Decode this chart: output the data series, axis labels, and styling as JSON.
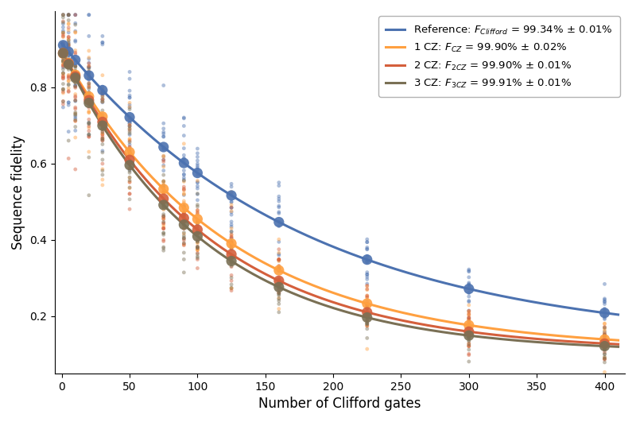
{
  "xlabel": "Number of Clifford gates",
  "ylabel": "Sequence fidelity",
  "xlim": [
    -5,
    415
  ],
  "ylim": [
    0.05,
    1.0
  ],
  "x_points": [
    1,
    5,
    10,
    20,
    30,
    50,
    75,
    90,
    100,
    125,
    160,
    225,
    300,
    400
  ],
  "series_labels": [
    "Reference: $F_{Clifford}$ = 99.34% ± 0.01%",
    "1 CZ: $F_{CZ}$ = 99.90% ± 0.02%",
    "2 CZ: $F_{2CZ}$ = 99.90% ± 0.01%",
    "3 CZ: $F_{3CZ}$ = 99.91% ± 0.01%"
  ],
  "curves": [
    {
      "alpha": 0.9944,
      "A": 0.79,
      "B": 0.125,
      "color": "#4C72B0"
    },
    {
      "alpha": 0.9918,
      "A": 0.785,
      "B": 0.11,
      "color": "#FFA040"
    },
    {
      "alpha": 0.991,
      "A": 0.79,
      "B": 0.107,
      "color": "#D45F3C"
    },
    {
      "alpha": 0.9905,
      "A": 0.793,
      "B": 0.104,
      "color": "#7A7055"
    }
  ],
  "n_scatter": 15,
  "mean_marker_size": 90,
  "scatter_marker_size": 12,
  "scatter_alpha": 0.45,
  "line_width": 2.2,
  "xticks": [
    0,
    50,
    100,
    150,
    200,
    250,
    300,
    350,
    400
  ],
  "yticks": [
    0.2,
    0.4,
    0.6,
    0.8
  ]
}
